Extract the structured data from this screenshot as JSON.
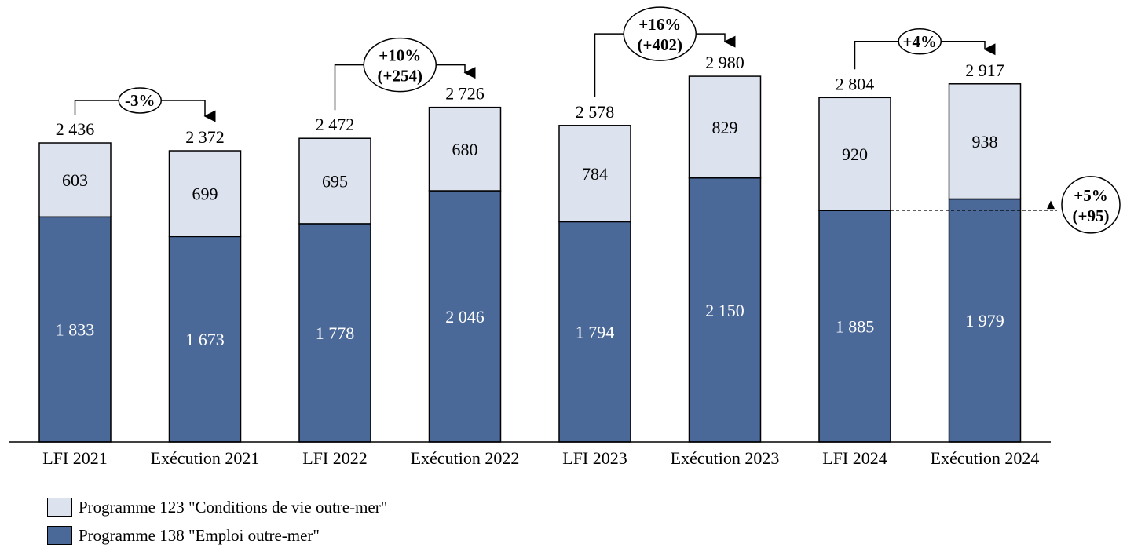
{
  "chart_data": {
    "type": "bar",
    "stacked": true,
    "categories": [
      "LFI 2021",
      "Exécution 2021",
      "LFI 2022",
      "Exécution 2022",
      "LFI 2023",
      "Exécution 2023",
      "LFI 2024",
      "Exécution 2024"
    ],
    "series": [
      {
        "name": "Programme 138 \"Emploi outre-mer\"",
        "color": "#4a6898",
        "values": [
          1833,
          1673,
          1778,
          2046,
          1794,
          2150,
          1885,
          1979
        ],
        "labels": [
          "1 833",
          "1 673",
          "1 778",
          "2 046",
          "1 794",
          "2 150",
          "1 885",
          "1 979"
        ]
      },
      {
        "name": "Programme 123 \"Conditions de vie outre-mer\"",
        "color": "#dce3ee",
        "values": [
          603,
          699,
          695,
          680,
          784,
          829,
          920,
          938
        ],
        "labels": [
          "603",
          "699",
          "695",
          "680",
          "784",
          "829",
          "920",
          "938"
        ]
      }
    ],
    "totals": [
      2436,
      2372,
      2472,
      2726,
      2578,
      2980,
      2804,
      2917
    ],
    "total_labels": [
      "2 436",
      "2 372",
      "2 472",
      "2 726",
      "2 578",
      "2 980",
      "2 804",
      "2 917"
    ],
    "annotations": [
      {
        "from": 0,
        "to": 1,
        "lines": [
          "-3%"
        ]
      },
      {
        "from": 2,
        "to": 3,
        "lines": [
          "+10%",
          "(+254)"
        ]
      },
      {
        "from": 4,
        "to": 5,
        "lines": [
          "+16%",
          "(+402)"
        ]
      },
      {
        "from": 6,
        "to": 7,
        "lines": [
          "+4%"
        ]
      }
    ],
    "side_annotation": {
      "from": 6,
      "to": 7,
      "series": 0,
      "lines": [
        "+5%",
        "(+95)"
      ]
    },
    "ylim": [
      0,
      3000
    ],
    "grid": false,
    "legend_position": "bottom-left"
  }
}
